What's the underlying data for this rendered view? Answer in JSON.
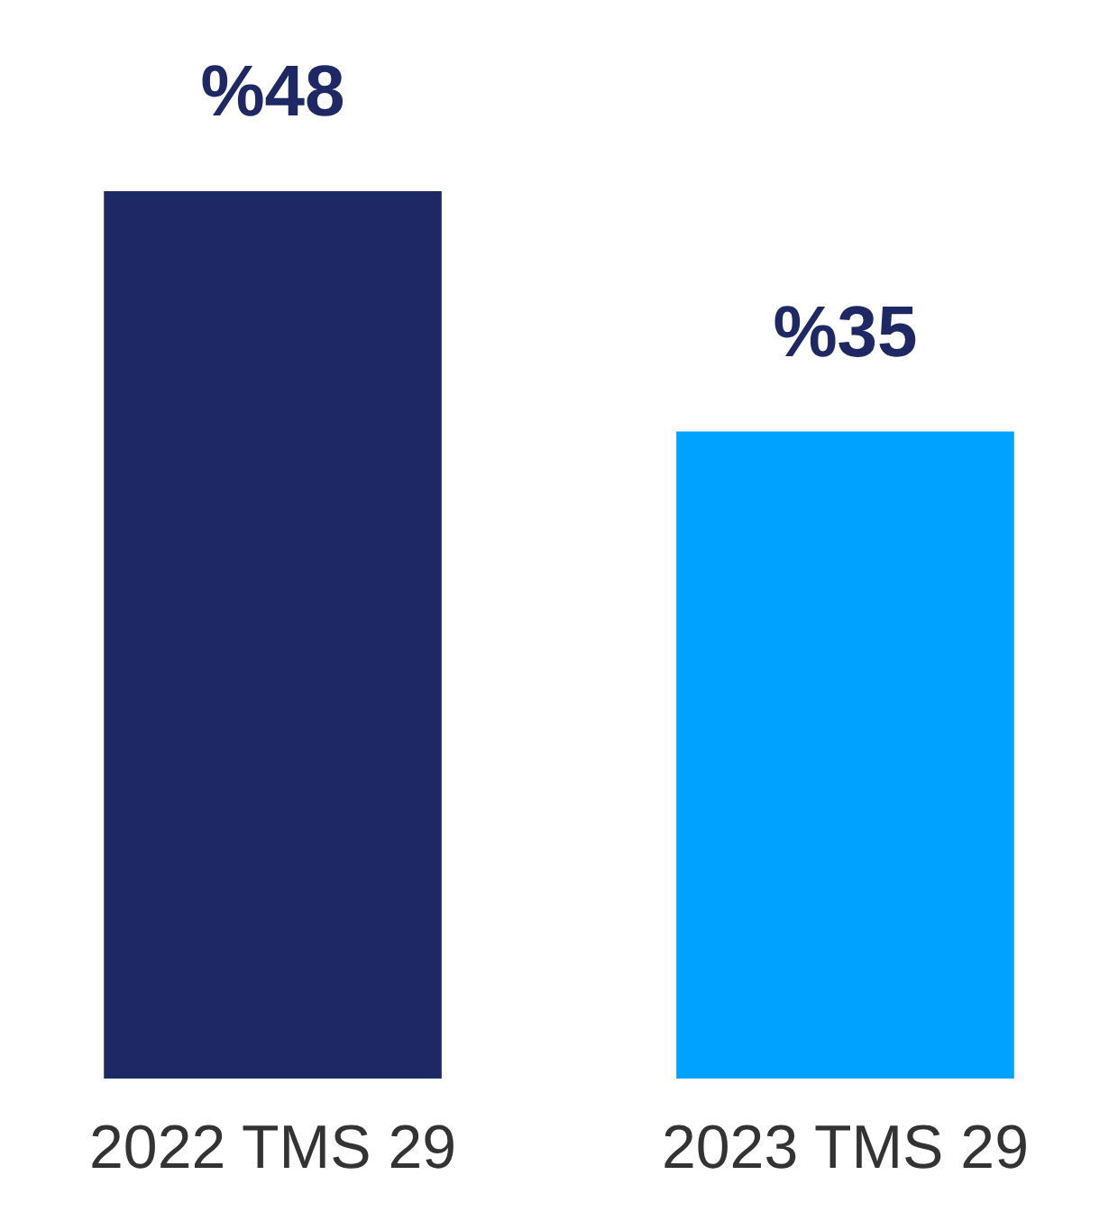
{
  "chart_data": {
    "type": "bar",
    "categories": [
      "2022 TMS 29",
      "2023 TMS 29"
    ],
    "values": [
      48,
      35
    ],
    "colors": [
      "#1e2864",
      "#00a2ff"
    ],
    "value_labels": [
      "%48",
      "%35"
    ]
  }
}
